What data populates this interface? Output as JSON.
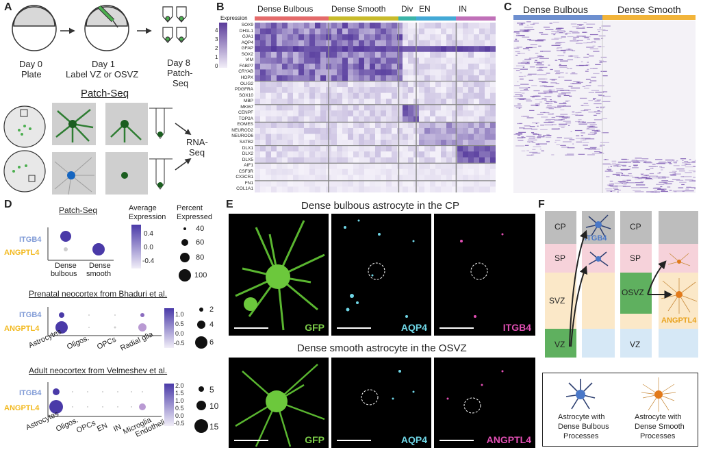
{
  "panels": [
    "A",
    "B",
    "C",
    "D",
    "E",
    "F"
  ],
  "panel_a": {
    "steps": [
      {
        "label": "Day 0"
      },
      {
        "label": "Plate"
      },
      {
        "label": "Day 1"
      },
      {
        "label": "Label VZ or OSVZ"
      },
      {
        "label": "Day 8"
      },
      {
        "label": "Patch-"
      },
      {
        "label": "Seq"
      }
    ],
    "patchseq_title": "Patch-Seq",
    "rnaseq_label": [
      "RNA-",
      "Seq"
    ]
  },
  "panel_b": {
    "legend_title": "Expression",
    "legend_ticks": [
      "4",
      "3",
      "2",
      "1",
      "0"
    ],
    "groups": [
      "Dense Bulbous",
      "Dense Smooth",
      "Div",
      "EN",
      "IN"
    ],
    "group_colors": [
      "#e46a6a",
      "#c8bb2b",
      "#3bb4a8",
      "#43a9d6",
      "#c070b8"
    ],
    "genes": [
      "SOX9",
      "DH1L1",
      "GJA1",
      "AQP4",
      "GFAP",
      "SOX2",
      "VIM",
      "FABP7",
      "CRYAB",
      "HOPX",
      "OLIG2",
      "PDGFRA",
      "SOX10",
      "MBP",
      "MKI67",
      "CENPF",
      "TOP2A",
      "EOMES",
      "NEUROD2",
      "NEUROD6",
      "SATB2",
      "DLX1",
      "DLX2",
      "DLX5",
      "AIF1",
      "CSF3R",
      "CX3CR1",
      "FN1",
      "COL1A1"
    ]
  },
  "panel_c": {
    "groups": [
      "Dense Bulbous",
      "Dense Smooth"
    ],
    "group_colors": [
      "#6d8fcf",
      "#f2b43a"
    ]
  },
  "panel_d": {
    "sub1": {
      "title": "Patch-Seq",
      "genes": [
        "ITGB4",
        "ANGPTL4"
      ],
      "categories": [
        "Dense",
        "bulbous",
        "Dense",
        "smooth"
      ]
    },
    "avg_expr": {
      "title": [
        "Average",
        "Expression"
      ],
      "ticks": [
        "0.4",
        "0.0",
        "-0.4"
      ]
    },
    "pct_expr": {
      "title": [
        "Percent",
        "Expressed"
      ],
      "ticks": [
        "40",
        "60",
        "80",
        "100"
      ]
    },
    "sub2": {
      "title": "Prenatal neocortex from Bhaduri et al.",
      "genes": [
        "ITGB4",
        "ANGPTL4"
      ],
      "categories": [
        "Astrocytes",
        "Oligos.",
        "OPCs",
        "Radial glia"
      ],
      "color_ticks": [
        "1.0",
        "0.5",
        "0.0",
        "-0.5"
      ],
      "size_ticks": [
        "2",
        "4",
        "6"
      ]
    },
    "sub3": {
      "title": "Adult neocortex from Velmeshev et al.",
      "genes": [
        "ITGB4",
        "ANGPTL4"
      ],
      "categories": [
        "Astrocytes",
        "Oligos.",
        "OPCs",
        "EN",
        "IN",
        "Microglia",
        "Endothelial"
      ],
      "color_ticks": [
        "2.0",
        "1.5",
        "1.0",
        "0.5",
        "0.0",
        "-0.5"
      ],
      "size_ticks": [
        "5",
        "10",
        "15"
      ]
    },
    "gene_colors": {
      "ITGB4": "#7f9ad6",
      "ANGPTL4": "#f2b81c"
    }
  },
  "panel_e": {
    "row1_title": "Dense bulbous astrocyte in the CP",
    "row2_title": "Dense smooth astrocyte in the OSVZ",
    "row1_labels": [
      "GFP",
      "AQP4",
      "ITGB4"
    ],
    "row2_labels": [
      "GFP",
      "AQP4",
      "ANGPTL4"
    ],
    "label_colors": [
      "#7ed04a",
      "#6fd6e6",
      "#e24fb4"
    ]
  },
  "panel_f": {
    "zones_left": [
      "CP",
      "SP",
      "SVZ",
      "VZ"
    ],
    "zones_right": [
      "CP",
      "SP",
      "OSVZ",
      "VZ"
    ],
    "marker_left": "ITGB4",
    "marker_right": "ANGPTL4",
    "legend": [
      {
        "text": [
          "Astrocyte with",
          "Dense Bulbous",
          "Processes"
        ]
      },
      {
        "text": [
          "Astrocyte with",
          "Dense Smooth",
          "Processes"
        ]
      }
    ]
  }
}
